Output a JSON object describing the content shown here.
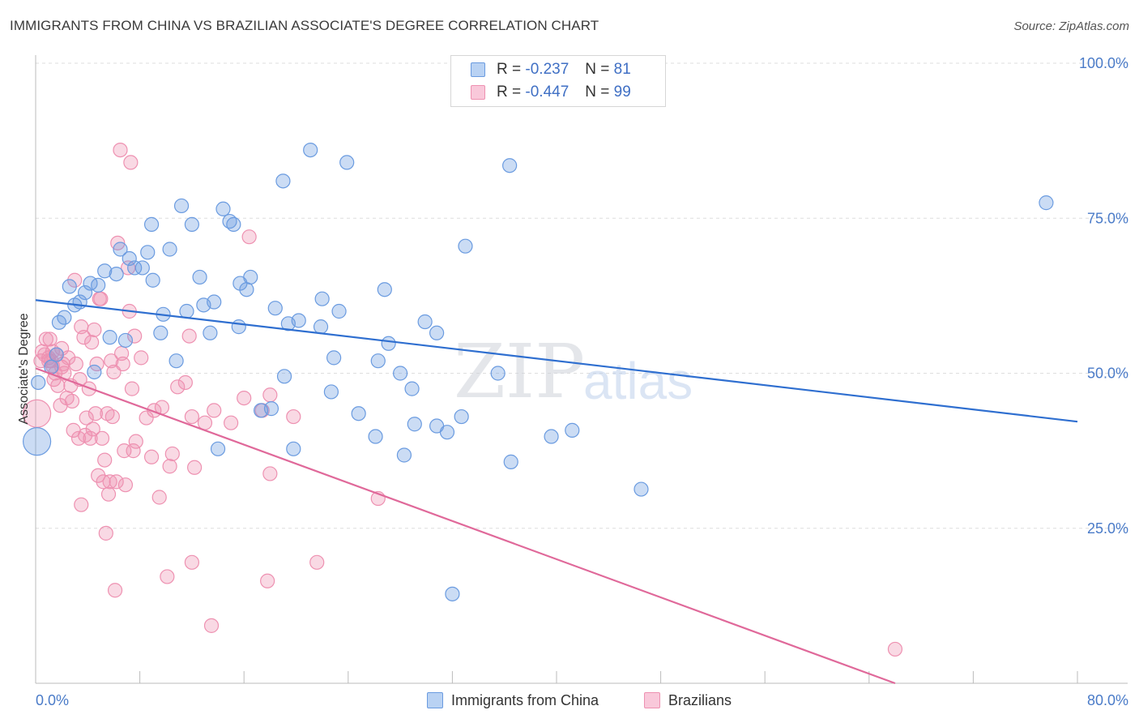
{
  "header": {
    "title": "IMMIGRANTS FROM CHINA VS BRAZILIAN ASSOCIATE'S DEGREE CORRELATION CHART",
    "source": "Source: ZipAtlas.com"
  },
  "legend": {
    "series1": {
      "r_label": "R =",
      "r_value": "-0.237",
      "n_label": "N =",
      "n_value": "81"
    },
    "series2": {
      "r_label": "R =",
      "r_value": "-0.447",
      "n_label": "N =",
      "n_value": "99"
    }
  },
  "watermark": {
    "zip": "ZIP",
    "atlas": "atlas"
  },
  "chart_data": {
    "type": "scatter",
    "title": "IMMIGRANTS FROM CHINA VS BRAZILIAN ASSOCIATE'S DEGREE CORRELATION CHART",
    "xlabel": "",
    "ylabel": "Associate's Degree",
    "xlim": [
      0,
      80
    ],
    "ylim": [
      0,
      100
    ],
    "x_tick_labels": [
      "0.0%",
      "80.0%"
    ],
    "y_tick_labels": [
      "100.0%",
      "75.0%",
      "50.0%",
      "25.0%"
    ],
    "y_ticks": [
      100,
      75,
      50,
      25
    ],
    "grid": true,
    "legend_position": "bottom-center",
    "colors": {
      "china": "#6a9be0",
      "brazil": "#ee91b1",
      "china_line": "#2f6fd0",
      "brazil_line": "#e0699a"
    },
    "series": [
      {
        "name": "Immigrants from China",
        "r": -0.237,
        "n": 81,
        "trend": {
          "x": [
            0,
            80
          ],
          "y": [
            61.8,
            42.2
          ]
        },
        "points": [
          {
            "x": 0.1,
            "y": 39,
            "big": true
          },
          {
            "x": 0.2,
            "y": 48.5
          },
          {
            "x": 1.2,
            "y": 51
          },
          {
            "x": 1.8,
            "y": 58.2
          },
          {
            "x": 2.2,
            "y": 59
          },
          {
            "x": 2.6,
            "y": 64
          },
          {
            "x": 3,
            "y": 61
          },
          {
            "x": 3.4,
            "y": 61.5
          },
          {
            "x": 3.8,
            "y": 63
          },
          {
            "x": 4.2,
            "y": 64.5
          },
          {
            "x": 4.8,
            "y": 64.2
          },
          {
            "x": 4.5,
            "y": 50.2
          },
          {
            "x": 5.3,
            "y": 66.5
          },
          {
            "x": 5.7,
            "y": 55.8
          },
          {
            "x": 6.2,
            "y": 66
          },
          {
            "x": 6.5,
            "y": 70
          },
          {
            "x": 6.9,
            "y": 55.3
          },
          {
            "x": 7.2,
            "y": 68.5
          },
          {
            "x": 7.6,
            "y": 67
          },
          {
            "x": 8.2,
            "y": 67
          },
          {
            "x": 8.9,
            "y": 74
          },
          {
            "x": 8.6,
            "y": 69.5
          },
          {
            "x": 9.0,
            "y": 65
          },
          {
            "x": 9.6,
            "y": 56.5
          },
          {
            "x": 9.8,
            "y": 59.5
          },
          {
            "x": 10.3,
            "y": 70
          },
          {
            "x": 10.8,
            "y": 52
          },
          {
            "x": 11.2,
            "y": 77
          },
          {
            "x": 11.6,
            "y": 60
          },
          {
            "x": 12.0,
            "y": 74
          },
          {
            "x": 12.6,
            "y": 65.5
          },
          {
            "x": 12.9,
            "y": 61
          },
          {
            "x": 13.4,
            "y": 56.5
          },
          {
            "x": 13.7,
            "y": 61.5
          },
          {
            "x": 14.0,
            "y": 37.8
          },
          {
            "x": 14.4,
            "y": 76.5
          },
          {
            "x": 14.9,
            "y": 74.5
          },
          {
            "x": 15.2,
            "y": 74
          },
          {
            "x": 15.6,
            "y": 57.5
          },
          {
            "x": 15.7,
            "y": 64.5
          },
          {
            "x": 16.2,
            "y": 63.5
          },
          {
            "x": 16.5,
            "y": 65.5
          },
          {
            "x": 17.3,
            "y": 44
          },
          {
            "x": 18.1,
            "y": 44.3
          },
          {
            "x": 18.4,
            "y": 60.5
          },
          {
            "x": 19.0,
            "y": 81
          },
          {
            "x": 19.1,
            "y": 49.5
          },
          {
            "x": 19.4,
            "y": 58
          },
          {
            "x": 19.8,
            "y": 37.8
          },
          {
            "x": 20.2,
            "y": 58.5
          },
          {
            "x": 21.1,
            "y": 86
          },
          {
            "x": 21.9,
            "y": 57.5
          },
          {
            "x": 22.0,
            "y": 62
          },
          {
            "x": 22.7,
            "y": 47
          },
          {
            "x": 22.9,
            "y": 52.5
          },
          {
            "x": 23.3,
            "y": 60
          },
          {
            "x": 23.9,
            "y": 84
          },
          {
            "x": 24.8,
            "y": 43.5
          },
          {
            "x": 26.1,
            "y": 39.8
          },
          {
            "x": 26.3,
            "y": 52
          },
          {
            "x": 26.8,
            "y": 63.5
          },
          {
            "x": 27.1,
            "y": 54.8
          },
          {
            "x": 28.0,
            "y": 50
          },
          {
            "x": 28.3,
            "y": 36.8
          },
          {
            "x": 28.9,
            "y": 47.5
          },
          {
            "x": 29.1,
            "y": 41.8
          },
          {
            "x": 29.9,
            "y": 58.3
          },
          {
            "x": 30.8,
            "y": 41.5
          },
          {
            "x": 30.8,
            "y": 56.5
          },
          {
            "x": 31.6,
            "y": 40.5
          },
          {
            "x": 32.0,
            "y": 14.4
          },
          {
            "x": 32.7,
            "y": 43
          },
          {
            "x": 33.0,
            "y": 70.5
          },
          {
            "x": 35.5,
            "y": 50
          },
          {
            "x": 36.4,
            "y": 83.5
          },
          {
            "x": 36.5,
            "y": 35.7
          },
          {
            "x": 39.6,
            "y": 39.8
          },
          {
            "x": 41.2,
            "y": 40.8
          },
          {
            "x": 46.5,
            "y": 31.3
          },
          {
            "x": 77.6,
            "y": 77.5
          },
          {
            "x": 1.6,
            "y": 53
          }
        ]
      },
      {
        "name": "Brazilians",
        "r": -0.447,
        "n": 99,
        "trend": {
          "x": [
            0,
            66
          ],
          "y": [
            50.8,
            0
          ]
        },
        "points": [
          {
            "x": 0.1,
            "y": 43.5,
            "big": true
          },
          {
            "x": 0.4,
            "y": 52
          },
          {
            "x": 0.5,
            "y": 53.5
          },
          {
            "x": 0.7,
            "y": 53
          },
          {
            "x": 0.8,
            "y": 55.5
          },
          {
            "x": 1.0,
            "y": 52.5
          },
          {
            "x": 1.1,
            "y": 55.5
          },
          {
            "x": 1.2,
            "y": 52
          },
          {
            "x": 1.3,
            "y": 53.5
          },
          {
            "x": 1.4,
            "y": 49
          },
          {
            "x": 1.5,
            "y": 50
          },
          {
            "x": 1.6,
            "y": 53
          },
          {
            "x": 1.7,
            "y": 48
          },
          {
            "x": 1.9,
            "y": 44.8
          },
          {
            "x": 2.0,
            "y": 54
          },
          {
            "x": 2.1,
            "y": 51.5
          },
          {
            "x": 2.2,
            "y": 50
          },
          {
            "x": 2.4,
            "y": 46
          },
          {
            "x": 2.5,
            "y": 52.5
          },
          {
            "x": 2.7,
            "y": 48
          },
          {
            "x": 2.8,
            "y": 45.5
          },
          {
            "x": 2.9,
            "y": 40.8
          },
          {
            "x": 3.0,
            "y": 65
          },
          {
            "x": 3.1,
            "y": 51.5
          },
          {
            "x": 3.3,
            "y": 39.5
          },
          {
            "x": 3.4,
            "y": 49
          },
          {
            "x": 3.5,
            "y": 57.5
          },
          {
            "x": 3.5,
            "y": 28.8
          },
          {
            "x": 3.7,
            "y": 55.8
          },
          {
            "x": 3.8,
            "y": 40
          },
          {
            "x": 3.9,
            "y": 42.8
          },
          {
            "x": 4.1,
            "y": 47.5
          },
          {
            "x": 4.2,
            "y": 39.5
          },
          {
            "x": 4.3,
            "y": 55
          },
          {
            "x": 4.4,
            "y": 41
          },
          {
            "x": 4.5,
            "y": 57
          },
          {
            "x": 4.6,
            "y": 43.5
          },
          {
            "x": 4.7,
            "y": 51.5
          },
          {
            "x": 4.8,
            "y": 33.5
          },
          {
            "x": 4.9,
            "y": 62
          },
          {
            "x": 5.0,
            "y": 62
          },
          {
            "x": 5.1,
            "y": 39.5
          },
          {
            "x": 5.2,
            "y": 32.5
          },
          {
            "x": 5.3,
            "y": 36
          },
          {
            "x": 5.4,
            "y": 24.2
          },
          {
            "x": 5.5,
            "y": 43.5
          },
          {
            "x": 5.6,
            "y": 30.5
          },
          {
            "x": 5.7,
            "y": 32.5
          },
          {
            "x": 5.8,
            "y": 52
          },
          {
            "x": 5.9,
            "y": 43
          },
          {
            "x": 6.0,
            "y": 50.2
          },
          {
            "x": 6.1,
            "y": 15
          },
          {
            "x": 6.2,
            "y": 32.5
          },
          {
            "x": 6.3,
            "y": 71
          },
          {
            "x": 6.5,
            "y": 86
          },
          {
            "x": 6.6,
            "y": 53.2
          },
          {
            "x": 6.7,
            "y": 51.5
          },
          {
            "x": 6.8,
            "y": 37.5
          },
          {
            "x": 6.9,
            "y": 32
          },
          {
            "x": 7.1,
            "y": 67
          },
          {
            "x": 7.2,
            "y": 60
          },
          {
            "x": 7.3,
            "y": 84
          },
          {
            "x": 7.4,
            "y": 47.5
          },
          {
            "x": 7.5,
            "y": 37.5
          },
          {
            "x": 7.6,
            "y": 56
          },
          {
            "x": 7.7,
            "y": 39
          },
          {
            "x": 8.1,
            "y": 52.5
          },
          {
            "x": 8.5,
            "y": 42.8
          },
          {
            "x": 8.9,
            "y": 36.5
          },
          {
            "x": 9.1,
            "y": 44
          },
          {
            "x": 9.5,
            "y": 30
          },
          {
            "x": 9.7,
            "y": 44.5
          },
          {
            "x": 10.1,
            "y": 17.2
          },
          {
            "x": 10.3,
            "y": 35
          },
          {
            "x": 10.5,
            "y": 37
          },
          {
            "x": 10.9,
            "y": 47.8
          },
          {
            "x": 11.5,
            "y": 48.5
          },
          {
            "x": 11.8,
            "y": 56
          },
          {
            "x": 12.0,
            "y": 43
          },
          {
            "x": 12.0,
            "y": 19.5
          },
          {
            "x": 12.2,
            "y": 34.8
          },
          {
            "x": 13.0,
            "y": 42
          },
          {
            "x": 13.5,
            "y": 9.3
          },
          {
            "x": 13.7,
            "y": 44
          },
          {
            "x": 15.0,
            "y": 42
          },
          {
            "x": 16.0,
            "y": 46
          },
          {
            "x": 16.4,
            "y": 72
          },
          {
            "x": 17.4,
            "y": 44
          },
          {
            "x": 18.0,
            "y": 46.5
          },
          {
            "x": 18.0,
            "y": 33.8
          },
          {
            "x": 17.8,
            "y": 16.5
          },
          {
            "x": 19.8,
            "y": 43
          },
          {
            "x": 21.6,
            "y": 19.5
          },
          {
            "x": 26.3,
            "y": 29.8
          },
          {
            "x": 66.0,
            "y": 5.5
          },
          {
            "x": 1.0,
            "y": 52
          },
          {
            "x": 1.3,
            "y": 51.2
          },
          {
            "x": 2.0,
            "y": 51
          }
        ]
      }
    ]
  },
  "bottom_legend": {
    "items": [
      "Immigrants from China",
      "Brazilians"
    ]
  }
}
